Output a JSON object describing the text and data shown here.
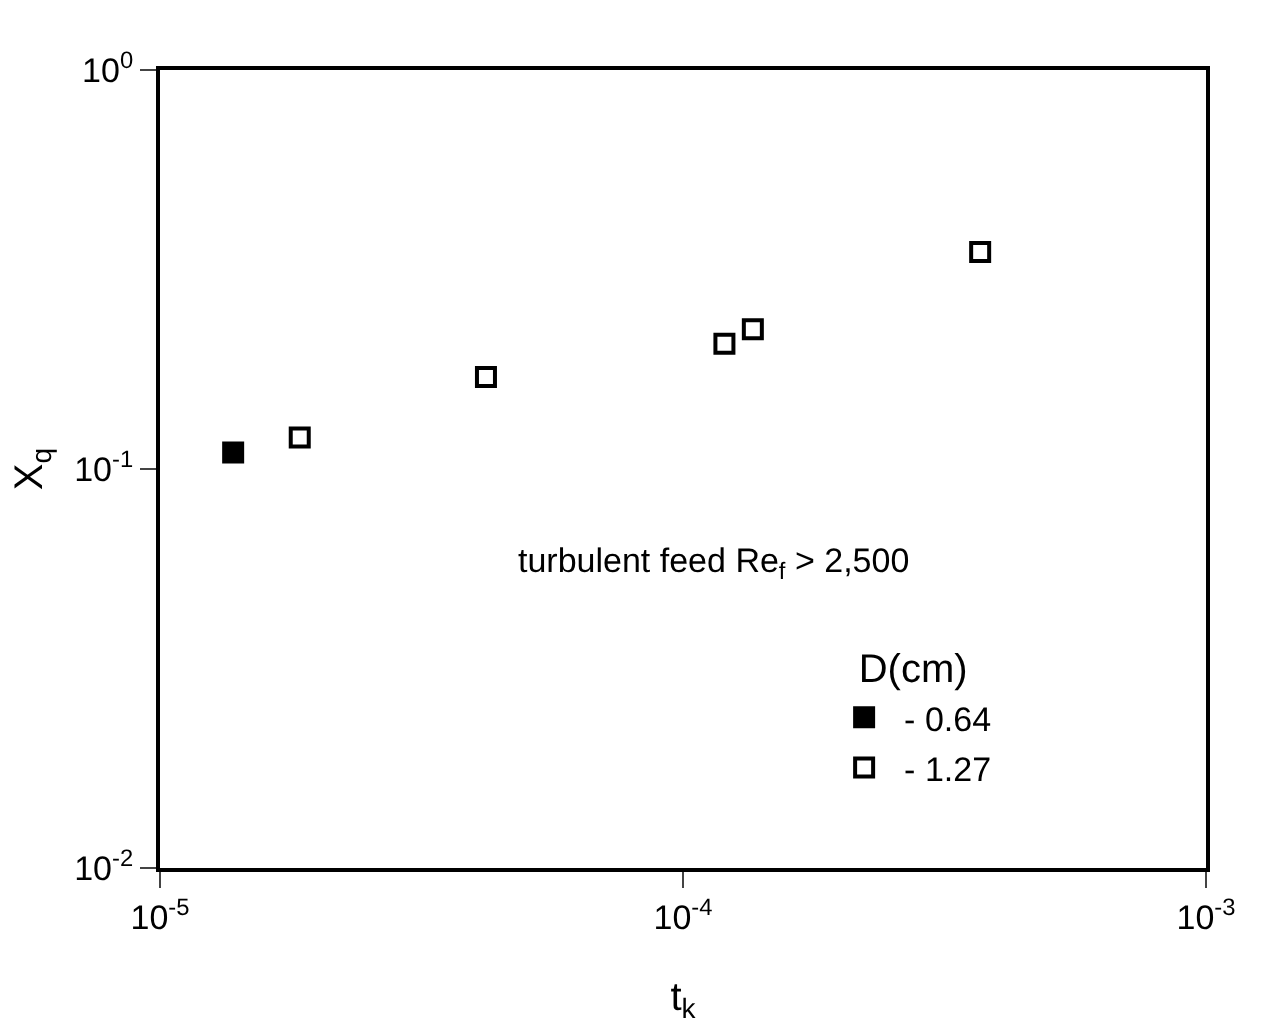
{
  "chart_data": {
    "type": "scatter",
    "xlabel": "t$_{k}$",
    "ylabel": "X$_{q}$",
    "legend_title": "D(cm)",
    "annotations": [
      "turbulent feed Re$_{f}$ > 2,500"
    ],
    "log": "xy",
    "grid": false,
    "legend": "bottom right",
    "marker": "square",
    "xlim": [
      1e-05,
      0.001
    ],
    "xticks": [
      {
        "value": 1e-05,
        "label": "10$^{-5}$"
      },
      {
        "value": 0.0001,
        "label": "10$^{-4}$"
      },
      {
        "value": 0.001,
        "label": "10$^{-3}$"
      }
    ],
    "ylim": [
      0.01,
      1
    ],
    "yticks": [
      {
        "value": 0.01,
        "label": "10$^{-2}$"
      },
      {
        "value": 0.1,
        "label": "10$^{-1}$"
      },
      {
        "value": 1,
        "label": "10$^{0}$"
      }
    ],
    "series": [
      {
        "name": "- 0.64",
        "color": "#000000",
        "x": [
          1.38e-05
        ],
        "values": [
          0.11
        ]
      },
      {
        "name": "- 1.27",
        "color": "#ffffff",
        "x": [
          1.85e-05,
          4.2e-05,
          0.00012,
          0.000136,
          0.00037
        ],
        "values": [
          0.12,
          0.17,
          0.206,
          0.224,
          0.35
        ]
      }
    ]
  }
}
